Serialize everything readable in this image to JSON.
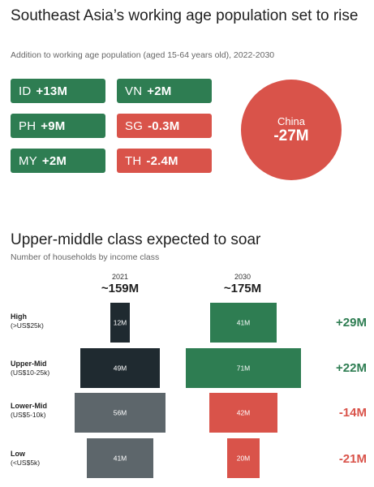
{
  "top": {
    "title": "Southeast Asia’s working age population set to rise",
    "subtitle": "Addition to working age population (aged 15-64 years old), 2022-2030",
    "tiles": [
      {
        "code": "ID",
        "value": "+13M",
        "color": "#2e7d52"
      },
      {
        "code": "VN",
        "value": "+2M",
        "color": "#2e7d52"
      },
      {
        "code": "PH",
        "value": "+9M",
        "color": "#2e7d52"
      },
      {
        "code": "SG",
        "value": "-0.3M",
        "color": "#d9534a"
      },
      {
        "code": "MY",
        "value": "+2M",
        "color": "#2e7d52"
      },
      {
        "code": "TH",
        "value": "-2.4M",
        "color": "#d9534a"
      }
    ],
    "china": {
      "name": "China",
      "value": "-27M",
      "color": "#d9534a"
    }
  },
  "bottom": {
    "title": "Upper-middle class expected to soar",
    "subtitle": "Number of households by income class",
    "years": [
      {
        "year": "2021",
        "total": "~159M"
      },
      {
        "year": "2030",
        "total": "~175M"
      }
    ],
    "classes": [
      {
        "name": "High",
        "range": "(>US$25k)"
      },
      {
        "name": "Upper-Mid",
        "range": "(US$10-25k)"
      },
      {
        "name": "Lower-Mid",
        "range": "(US$5-10k)"
      },
      {
        "name": "Low",
        "range": "(<US$5k)"
      }
    ],
    "changes": [
      "+29M",
      "+22M",
      "-14M",
      "-21M"
    ]
  },
  "chart_data": {
    "type": "bar",
    "title": "Upper-middle class expected to soar",
    "subtitle": "Number of households by income class",
    "categories": [
      "High (>US$25k)",
      "Upper-Mid (US$10-25k)",
      "Lower-Mid (US$5-10k)",
      "Low (<US$5k)"
    ],
    "series": [
      {
        "name": "2021",
        "values": [
          12,
          49,
          56,
          41
        ],
        "labels": [
          "12M",
          "49M",
          "56M",
          "41M"
        ],
        "colors": [
          "#1f2a30",
          "#1f2a30",
          "#5d666b",
          "#5d666b"
        ]
      },
      {
        "name": "2030",
        "values": [
          41,
          71,
          42,
          20
        ],
        "labels": [
          "41M",
          "71M",
          "42M",
          "20M"
        ],
        "colors": [
          "#2e7d52",
          "#2e7d52",
          "#d9534a",
          "#d9534a"
        ]
      }
    ],
    "changes": [
      "+29M",
      "+22M",
      "-14M",
      "-21M"
    ],
    "change_colors": [
      "#2e7d52",
      "#2e7d52",
      "#d9534a",
      "#d9534a"
    ]
  }
}
